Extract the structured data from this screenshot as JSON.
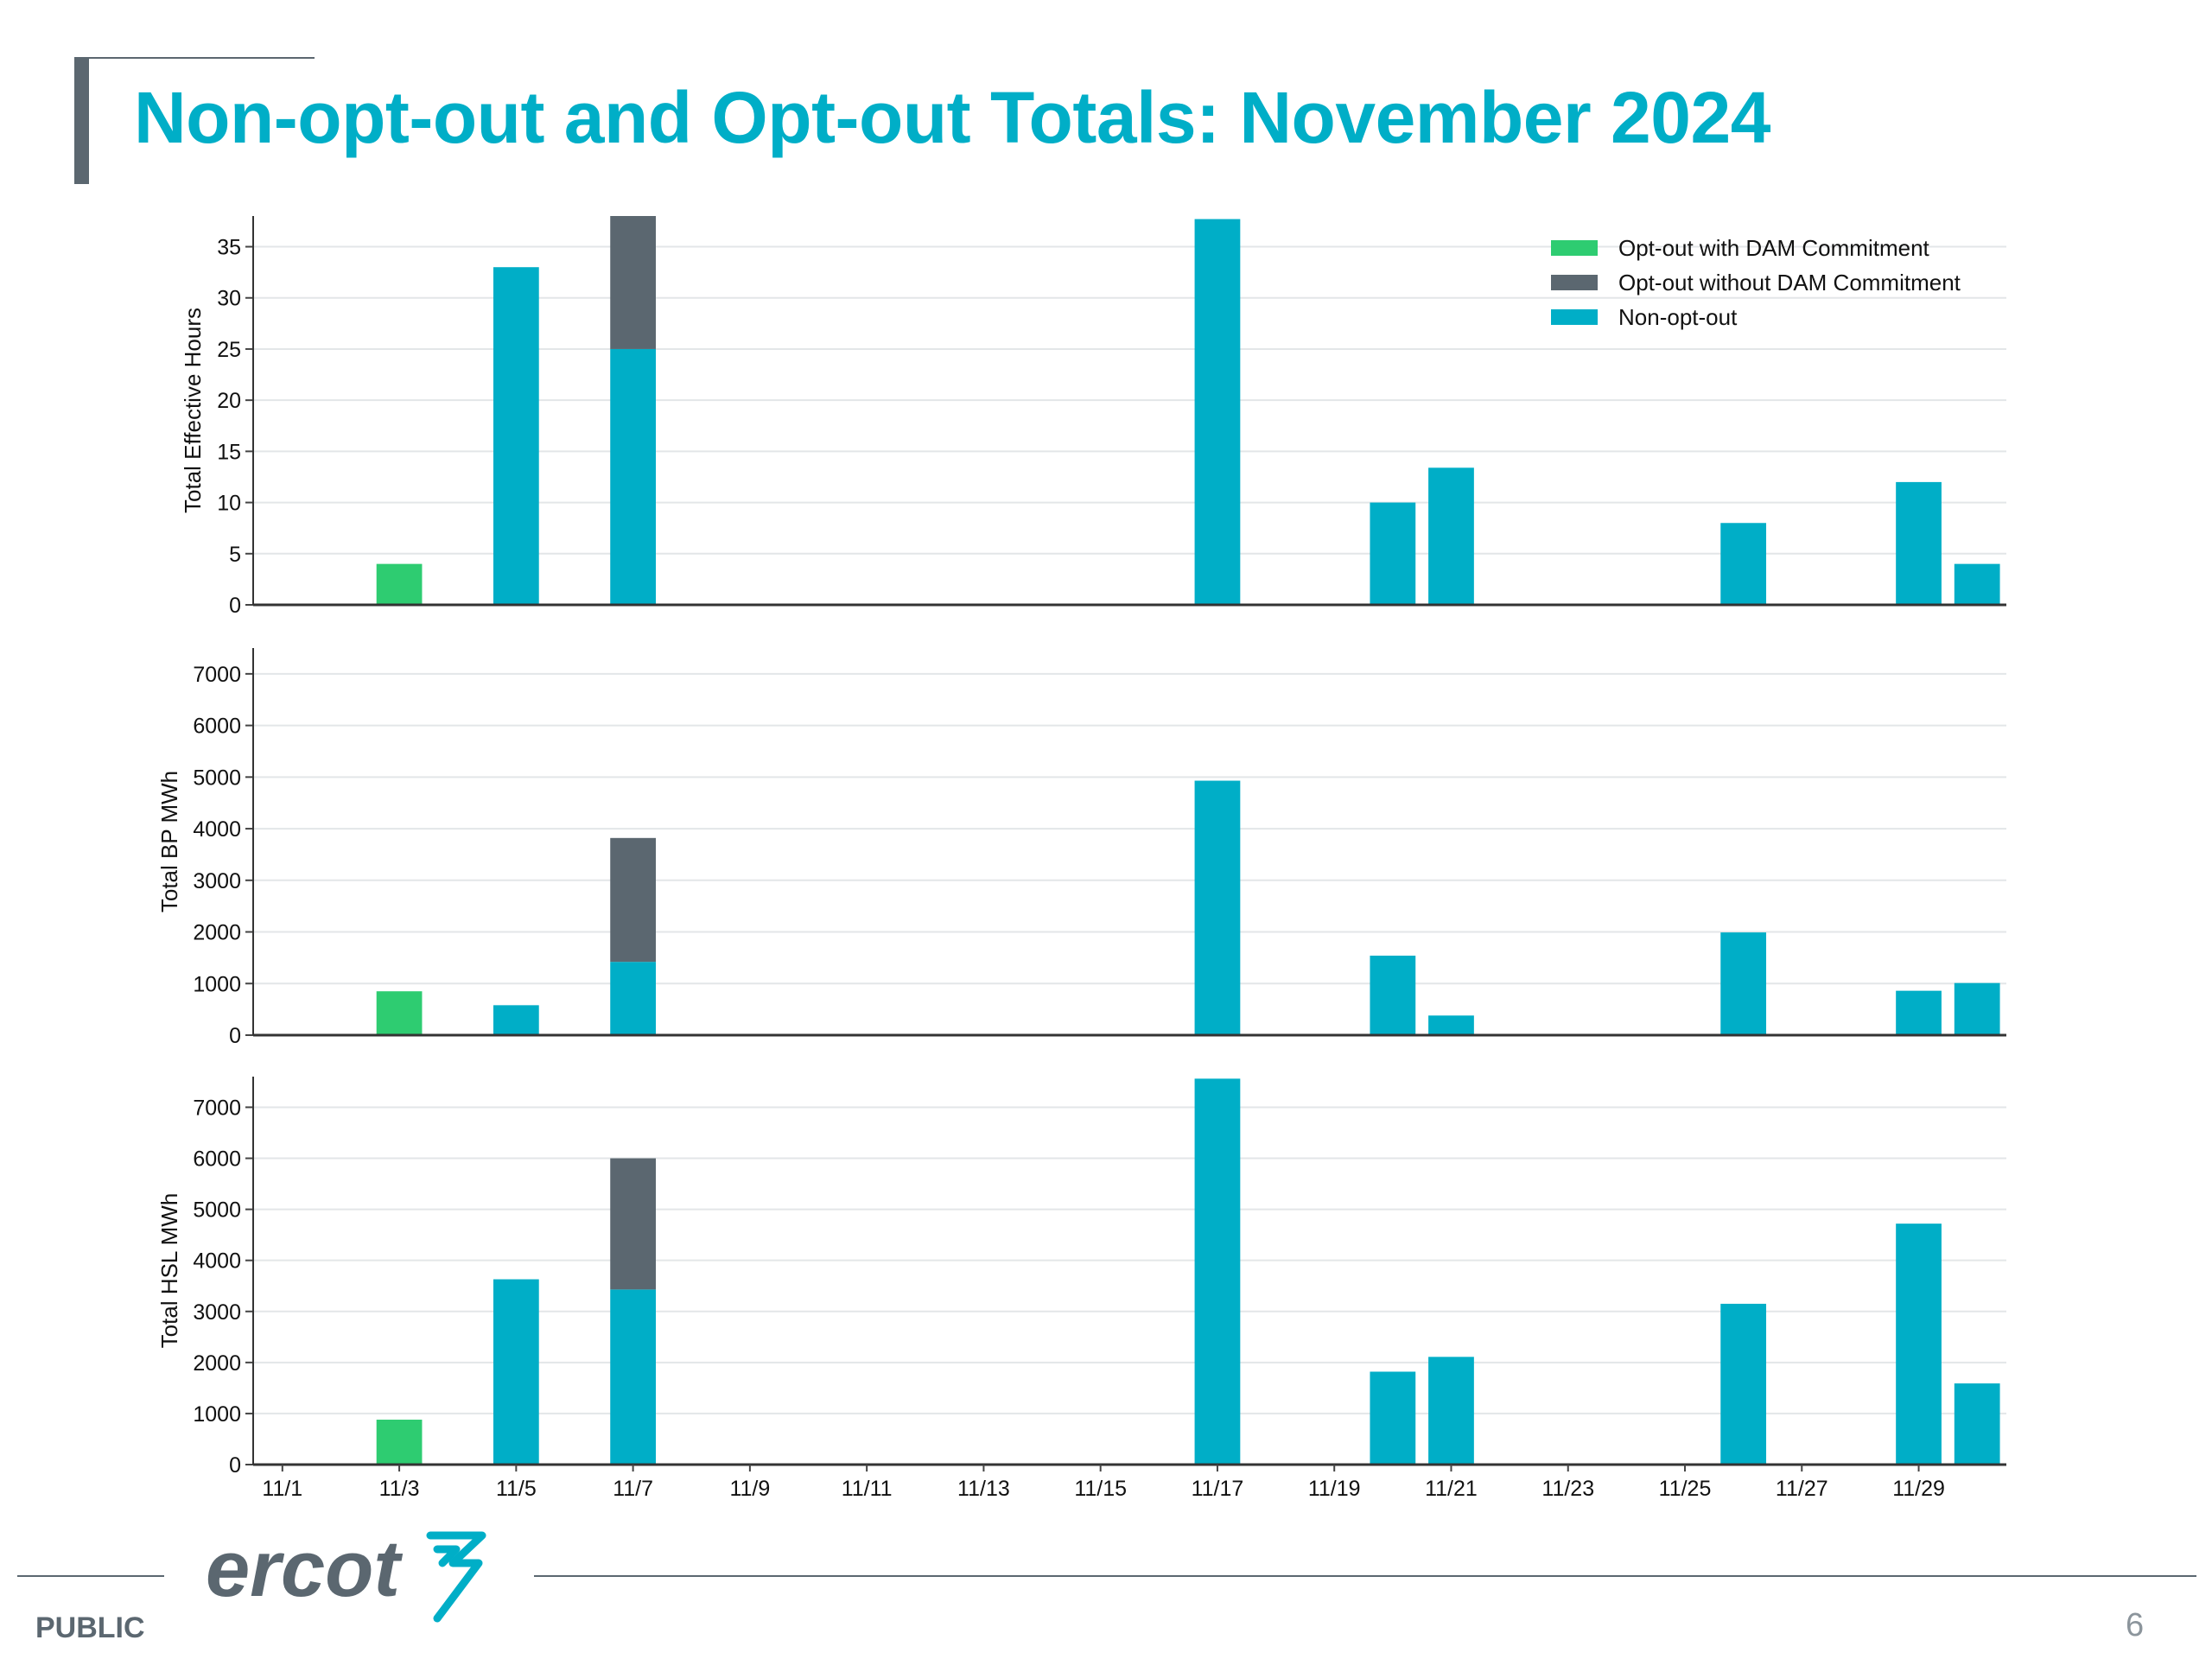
{
  "slide": {
    "title": "Non-opt-out and Opt-out Totals: November 2024",
    "footer_label": "PUBLIC",
    "page_number": "6",
    "logo_text": "ercot"
  },
  "colors": {
    "accent": "#00aec7",
    "opt_out_with_dam": "#2ecc71",
    "opt_out_without_dam": "#5b6770",
    "non_opt_out": "#00aec7"
  },
  "legend": [
    {
      "name": "Opt-out with DAM Commitment",
      "color": "#2ecc71"
    },
    {
      "name": "Opt-out without DAM Commitment",
      "color": "#5b6770"
    },
    {
      "name": "Non-opt-out",
      "color": "#00aec7"
    }
  ],
  "chart_data": [
    {
      "type": "bar",
      "stacked": true,
      "ylabel": "Total Effective Hours",
      "ylim": [
        0,
        38
      ],
      "yticks": [
        0,
        5,
        10,
        15,
        20,
        25,
        30,
        35
      ],
      "categories": [
        "11/1",
        "11/2",
        "11/3",
        "11/4",
        "11/5",
        "11/6",
        "11/7",
        "11/8",
        "11/9",
        "11/10",
        "11/11",
        "11/12",
        "11/13",
        "11/14",
        "11/15",
        "11/16",
        "11/17",
        "11/18",
        "11/19",
        "11/20",
        "11/21",
        "11/22",
        "11/23",
        "11/24",
        "11/25",
        "11/26",
        "11/27",
        "11/28",
        "11/29",
        "11/30"
      ],
      "series": [
        {
          "name": "Opt-out with DAM Commitment",
          "values": [
            0,
            0,
            4,
            0,
            0,
            0,
            0,
            0,
            0,
            0,
            0,
            0,
            0,
            0,
            0,
            0,
            0,
            0,
            0,
            0,
            0,
            0,
            0,
            0,
            0,
            0,
            0,
            0,
            0,
            0
          ]
        },
        {
          "name": "Non-opt-out",
          "values": [
            0,
            0,
            0,
            0,
            33,
            0,
            25,
            0,
            0,
            0,
            0,
            0,
            0,
            0,
            0,
            0,
            37.7,
            0,
            0,
            10,
            13.4,
            0,
            0,
            0,
            0,
            8,
            0,
            0,
            12,
            4
          ]
        },
        {
          "name": "Opt-out without DAM Commitment",
          "values": [
            0,
            0,
            0,
            0,
            0,
            0,
            13,
            0,
            0,
            0,
            0,
            0,
            0,
            0,
            0,
            0,
            0,
            0,
            0,
            0,
            0,
            0,
            0,
            0,
            0,
            0,
            0,
            0,
            0,
            0
          ]
        }
      ],
      "legend_position": "top-right"
    },
    {
      "type": "bar",
      "stacked": true,
      "ylabel": "Total BP MWh",
      "ylim": [
        0,
        7500
      ],
      "yticks": [
        0,
        1000,
        2000,
        3000,
        4000,
        5000,
        6000,
        7000
      ],
      "categories": [
        "11/1",
        "11/2",
        "11/3",
        "11/4",
        "11/5",
        "11/6",
        "11/7",
        "11/8",
        "11/9",
        "11/10",
        "11/11",
        "11/12",
        "11/13",
        "11/14",
        "11/15",
        "11/16",
        "11/17",
        "11/18",
        "11/19",
        "11/20",
        "11/21",
        "11/22",
        "11/23",
        "11/24",
        "11/25",
        "11/26",
        "11/27",
        "11/28",
        "11/29",
        "11/30"
      ],
      "series": [
        {
          "name": "Opt-out with DAM Commitment",
          "values": [
            0,
            0,
            850,
            0,
            0,
            0,
            0,
            0,
            0,
            0,
            0,
            0,
            0,
            0,
            0,
            0,
            0,
            0,
            0,
            0,
            0,
            0,
            0,
            0,
            0,
            0,
            0,
            0,
            0,
            0
          ]
        },
        {
          "name": "Non-opt-out",
          "values": [
            0,
            0,
            0,
            0,
            580,
            0,
            1420,
            0,
            0,
            0,
            0,
            0,
            0,
            0,
            0,
            0,
            4930,
            0,
            0,
            1540,
            380,
            0,
            0,
            0,
            0,
            1990,
            0,
            0,
            860,
            1010
          ]
        },
        {
          "name": "Opt-out without DAM Commitment",
          "values": [
            0,
            0,
            0,
            0,
            0,
            0,
            2400,
            0,
            0,
            0,
            0,
            0,
            0,
            0,
            0,
            0,
            0,
            0,
            0,
            0,
            0,
            0,
            0,
            0,
            0,
            0,
            0,
            0,
            0,
            0
          ]
        }
      ]
    },
    {
      "type": "bar",
      "stacked": true,
      "ylabel": "Total HSL MWh",
      "ylim": [
        0,
        7600
      ],
      "yticks": [
        0,
        1000,
        2000,
        3000,
        4000,
        5000,
        6000,
        7000
      ],
      "categories": [
        "11/1",
        "11/2",
        "11/3",
        "11/4",
        "11/5",
        "11/6",
        "11/7",
        "11/8",
        "11/9",
        "11/10",
        "11/11",
        "11/12",
        "11/13",
        "11/14",
        "11/15",
        "11/16",
        "11/17",
        "11/18",
        "11/19",
        "11/20",
        "11/21",
        "11/22",
        "11/23",
        "11/24",
        "11/25",
        "11/26",
        "11/27",
        "11/28",
        "11/29",
        "11/30"
      ],
      "series": [
        {
          "name": "Opt-out with DAM Commitment",
          "values": [
            0,
            0,
            880,
            0,
            0,
            0,
            0,
            0,
            0,
            0,
            0,
            0,
            0,
            0,
            0,
            0,
            0,
            0,
            0,
            0,
            0,
            0,
            0,
            0,
            0,
            0,
            0,
            0,
            0,
            0
          ]
        },
        {
          "name": "Non-opt-out",
          "values": [
            0,
            0,
            0,
            0,
            3630,
            0,
            3430,
            0,
            0,
            0,
            0,
            0,
            0,
            0,
            0,
            0,
            7560,
            0,
            0,
            1820,
            2110,
            0,
            0,
            0,
            0,
            3150,
            0,
            0,
            4720,
            1590
          ]
        },
        {
          "name": "Opt-out without DAM Commitment",
          "values": [
            0,
            0,
            0,
            0,
            0,
            0,
            2570,
            0,
            0,
            0,
            0,
            0,
            0,
            0,
            0,
            0,
            0,
            0,
            0,
            0,
            0,
            0,
            0,
            0,
            0,
            0,
            0,
            0,
            0,
            0
          ]
        }
      ]
    }
  ],
  "x_tick_labels": [
    "11/1",
    "11/3",
    "11/5",
    "11/7",
    "11/9",
    "11/11",
    "11/13",
    "11/15",
    "11/17",
    "11/19",
    "11/21",
    "11/23",
    "11/25",
    "11/27",
    "11/29"
  ]
}
